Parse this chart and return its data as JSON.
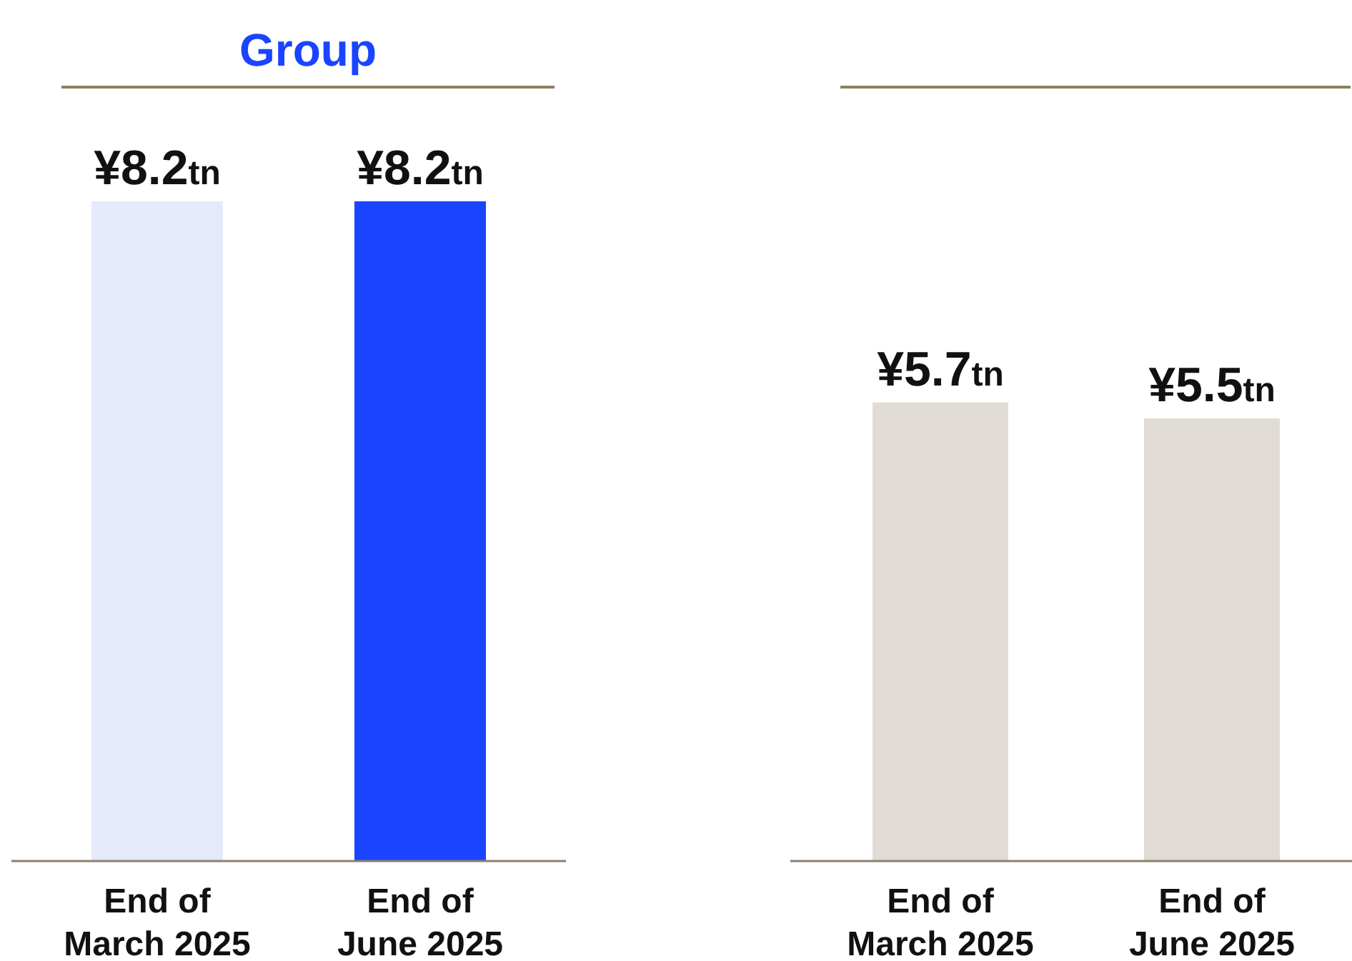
{
  "chart_data": [
    {
      "type": "bar",
      "title": "Group",
      "categories": [
        "End of March 2025",
        "End of June 2025"
      ],
      "values": [
        8.2,
        8.2
      ],
      "colors": [
        "#e5e9fb",
        "#1a44ff"
      ],
      "value_labels": [
        "¥8.2tn",
        "¥8.2tn"
      ]
    },
    {
      "type": "bar",
      "categories": [
        "End of March 2025",
        "End of June 2025"
      ],
      "values": [
        5.7,
        5.5
      ],
      "colors": [
        "#e0dcd5",
        "#e0dcd5"
      ],
      "value_labels": [
        "¥5.7tn",
        "¥5.5tn"
      ]
    }
  ]
}
